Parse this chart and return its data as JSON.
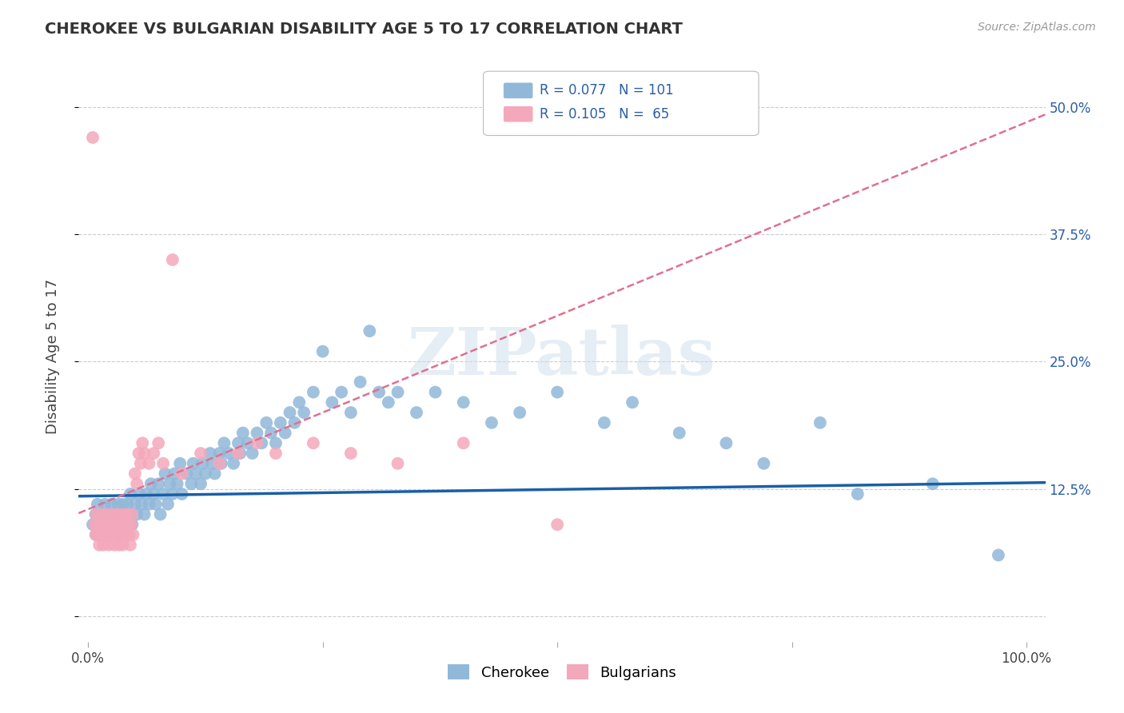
{
  "title": "CHEROKEE VS BULGARIAN DISABILITY AGE 5 TO 17 CORRELATION CHART",
  "source": "Source: ZipAtlas.com",
  "ylabel": "Disability Age 5 to 17",
  "xlim": [
    -0.01,
    1.02
  ],
  "ylim": [
    -0.025,
    0.535
  ],
  "yticks": [
    0.0,
    0.125,
    0.25,
    0.375,
    0.5
  ],
  "ytick_labels_right": [
    "",
    "12.5%",
    "25.0%",
    "37.5%",
    "50.0%"
  ],
  "xticks": [
    0.0,
    0.25,
    0.5,
    0.75,
    1.0
  ],
  "xtick_labels": [
    "0.0%",
    "",
    "",
    "",
    "100.0%"
  ],
  "cherokee_R": 0.077,
  "cherokee_N": 101,
  "bulgarian_R": 0.105,
  "bulgarian_N": 65,
  "cherokee_color": "#91b8d9",
  "bulgarian_color": "#f4a8bb",
  "cherokee_line_color": "#1a5fa8",
  "bulgarian_line_color": "#e07090",
  "watermark": "ZIPatlas",
  "cherokee_x": [
    0.005,
    0.008,
    0.009,
    0.01,
    0.012,
    0.015,
    0.016,
    0.018,
    0.02,
    0.022,
    0.025,
    0.027,
    0.028,
    0.03,
    0.032,
    0.033,
    0.035,
    0.037,
    0.038,
    0.04,
    0.042,
    0.044,
    0.045,
    0.047,
    0.05,
    0.052,
    0.055,
    0.057,
    0.06,
    0.062,
    0.065,
    0.067,
    0.07,
    0.072,
    0.075,
    0.077,
    0.08,
    0.082,
    0.085,
    0.087,
    0.09,
    0.092,
    0.095,
    0.098,
    0.1,
    0.105,
    0.11,
    0.112,
    0.115,
    0.12,
    0.122,
    0.125,
    0.13,
    0.132,
    0.135,
    0.14,
    0.142,
    0.145,
    0.15,
    0.155,
    0.16,
    0.162,
    0.165,
    0.17,
    0.175,
    0.18,
    0.185,
    0.19,
    0.195,
    0.2,
    0.205,
    0.21,
    0.215,
    0.22,
    0.225,
    0.23,
    0.24,
    0.25,
    0.26,
    0.27,
    0.28,
    0.29,
    0.3,
    0.31,
    0.32,
    0.33,
    0.35,
    0.37,
    0.4,
    0.43,
    0.46,
    0.5,
    0.55,
    0.58,
    0.63,
    0.68,
    0.72,
    0.78,
    0.82,
    0.9,
    0.97
  ],
  "cherokee_y": [
    0.09,
    0.1,
    0.08,
    0.11,
    0.09,
    0.1,
    0.08,
    0.11,
    0.09,
    0.1,
    0.11,
    0.09,
    0.1,
    0.08,
    0.11,
    0.1,
    0.09,
    0.11,
    0.1,
    0.09,
    0.11,
    0.1,
    0.12,
    0.09,
    0.11,
    0.1,
    0.12,
    0.11,
    0.1,
    0.12,
    0.11,
    0.13,
    0.12,
    0.11,
    0.13,
    0.1,
    0.12,
    0.14,
    0.11,
    0.13,
    0.12,
    0.14,
    0.13,
    0.15,
    0.12,
    0.14,
    0.13,
    0.15,
    0.14,
    0.13,
    0.15,
    0.14,
    0.16,
    0.15,
    0.14,
    0.16,
    0.15,
    0.17,
    0.16,
    0.15,
    0.17,
    0.16,
    0.18,
    0.17,
    0.16,
    0.18,
    0.17,
    0.19,
    0.18,
    0.17,
    0.19,
    0.18,
    0.2,
    0.19,
    0.21,
    0.2,
    0.22,
    0.26,
    0.21,
    0.22,
    0.2,
    0.23,
    0.28,
    0.22,
    0.21,
    0.22,
    0.2,
    0.22,
    0.21,
    0.19,
    0.2,
    0.22,
    0.19,
    0.21,
    0.18,
    0.17,
    0.15,
    0.19,
    0.12,
    0.13,
    0.06
  ],
  "bulgarian_x": [
    0.005,
    0.007,
    0.008,
    0.009,
    0.01,
    0.011,
    0.012,
    0.013,
    0.014,
    0.015,
    0.016,
    0.017,
    0.018,
    0.019,
    0.02,
    0.021,
    0.022,
    0.023,
    0.024,
    0.025,
    0.026,
    0.027,
    0.028,
    0.029,
    0.03,
    0.031,
    0.032,
    0.033,
    0.034,
    0.035,
    0.036,
    0.037,
    0.038,
    0.039,
    0.04,
    0.041,
    0.042,
    0.043,
    0.044,
    0.045,
    0.046,
    0.047,
    0.048,
    0.05,
    0.052,
    0.054,
    0.056,
    0.058,
    0.06,
    0.065,
    0.07,
    0.075,
    0.08,
    0.09,
    0.1,
    0.12,
    0.14,
    0.16,
    0.18,
    0.2,
    0.24,
    0.28,
    0.33,
    0.4,
    0.5
  ],
  "bulgarian_y": [
    0.47,
    0.09,
    0.08,
    0.1,
    0.09,
    0.08,
    0.07,
    0.09,
    0.1,
    0.08,
    0.07,
    0.09,
    0.08,
    0.1,
    0.09,
    0.08,
    0.07,
    0.09,
    0.08,
    0.1,
    0.09,
    0.08,
    0.07,
    0.09,
    0.1,
    0.08,
    0.09,
    0.07,
    0.1,
    0.09,
    0.08,
    0.07,
    0.09,
    0.1,
    0.09,
    0.08,
    0.1,
    0.09,
    0.08,
    0.07,
    0.09,
    0.1,
    0.08,
    0.14,
    0.13,
    0.16,
    0.15,
    0.17,
    0.16,
    0.15,
    0.16,
    0.17,
    0.15,
    0.35,
    0.14,
    0.16,
    0.15,
    0.16,
    0.17,
    0.16,
    0.17,
    0.16,
    0.15,
    0.17,
    0.09
  ]
}
